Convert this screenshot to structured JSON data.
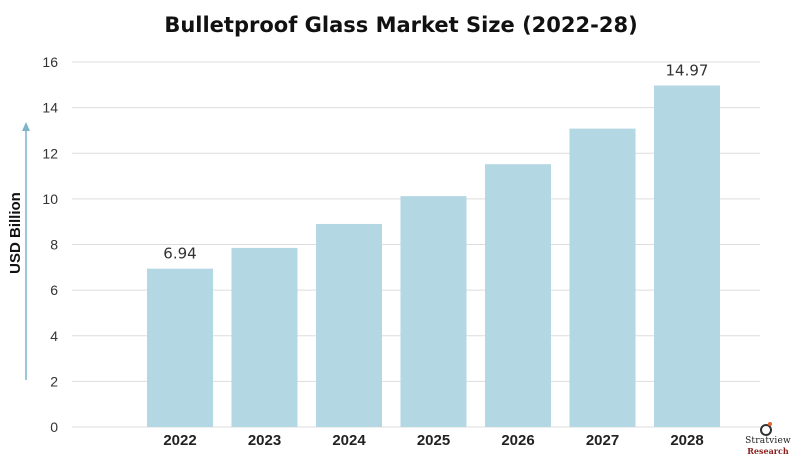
{
  "chart_data": {
    "type": "bar",
    "title": "Bulletproof Glass Market Size (2022-28)",
    "xlabel": "",
    "ylabel": "USD Billion",
    "categories": [
      "2022",
      "2023",
      "2024",
      "2025",
      "2026",
      "2027",
      "2028"
    ],
    "values": [
      6.94,
      7.85,
      8.9,
      10.12,
      11.52,
      13.08,
      14.97
    ],
    "data_labels": [
      "6.94",
      "",
      "",
      "",
      "",
      "",
      "14.97"
    ],
    "ylim": [
      0,
      16
    ],
    "yticks": [
      0,
      2,
      4,
      6,
      8,
      10,
      12,
      14,
      16
    ],
    "grid": "horizontal",
    "bar_color": "#b3d7e3",
    "grid_color": "#dddddd",
    "arrow_color": "#7fb3c8"
  },
  "logo": {
    "name": "Stratview",
    "sub": "Research"
  }
}
